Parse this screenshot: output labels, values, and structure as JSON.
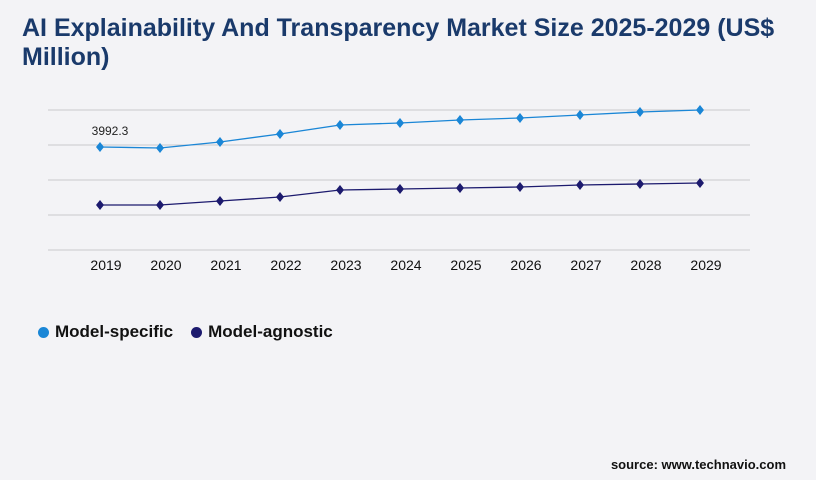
{
  "title": "AI Explainability And Transparency Market Size 2025-2029 (US$ Million)",
  "source": "source: www.technavio.com",
  "chart_data": {
    "type": "line",
    "title": "AI Explainability And Transparency Market Size 2025-2029 (US$ Million)",
    "categories": [
      "2019",
      "2020",
      "2021",
      "2022",
      "2023",
      "2024",
      "2025",
      "2026",
      "2027",
      "2028",
      "2029"
    ],
    "ylim": [
      0,
      5426
    ],
    "grid": true,
    "legend_position": "bottom-left",
    "series": [
      {
        "name": "Model-specific",
        "color": "#1a86d6",
        "values": [
          3992.3,
          3954,
          4186,
          4496,
          4845,
          4923,
          5039,
          5116,
          5233,
          5349,
          5426
        ]
      },
      {
        "name": "Model-agnostic",
        "color": "#1c1a6e",
        "values": [
          1744,
          1744,
          1899,
          2054,
          2326,
          2364,
          2403,
          2442,
          2519,
          2558,
          2597
        ]
      }
    ],
    "annotations": [
      {
        "category": "2019",
        "series": "Model-specific",
        "text": "3992.3"
      }
    ]
  }
}
